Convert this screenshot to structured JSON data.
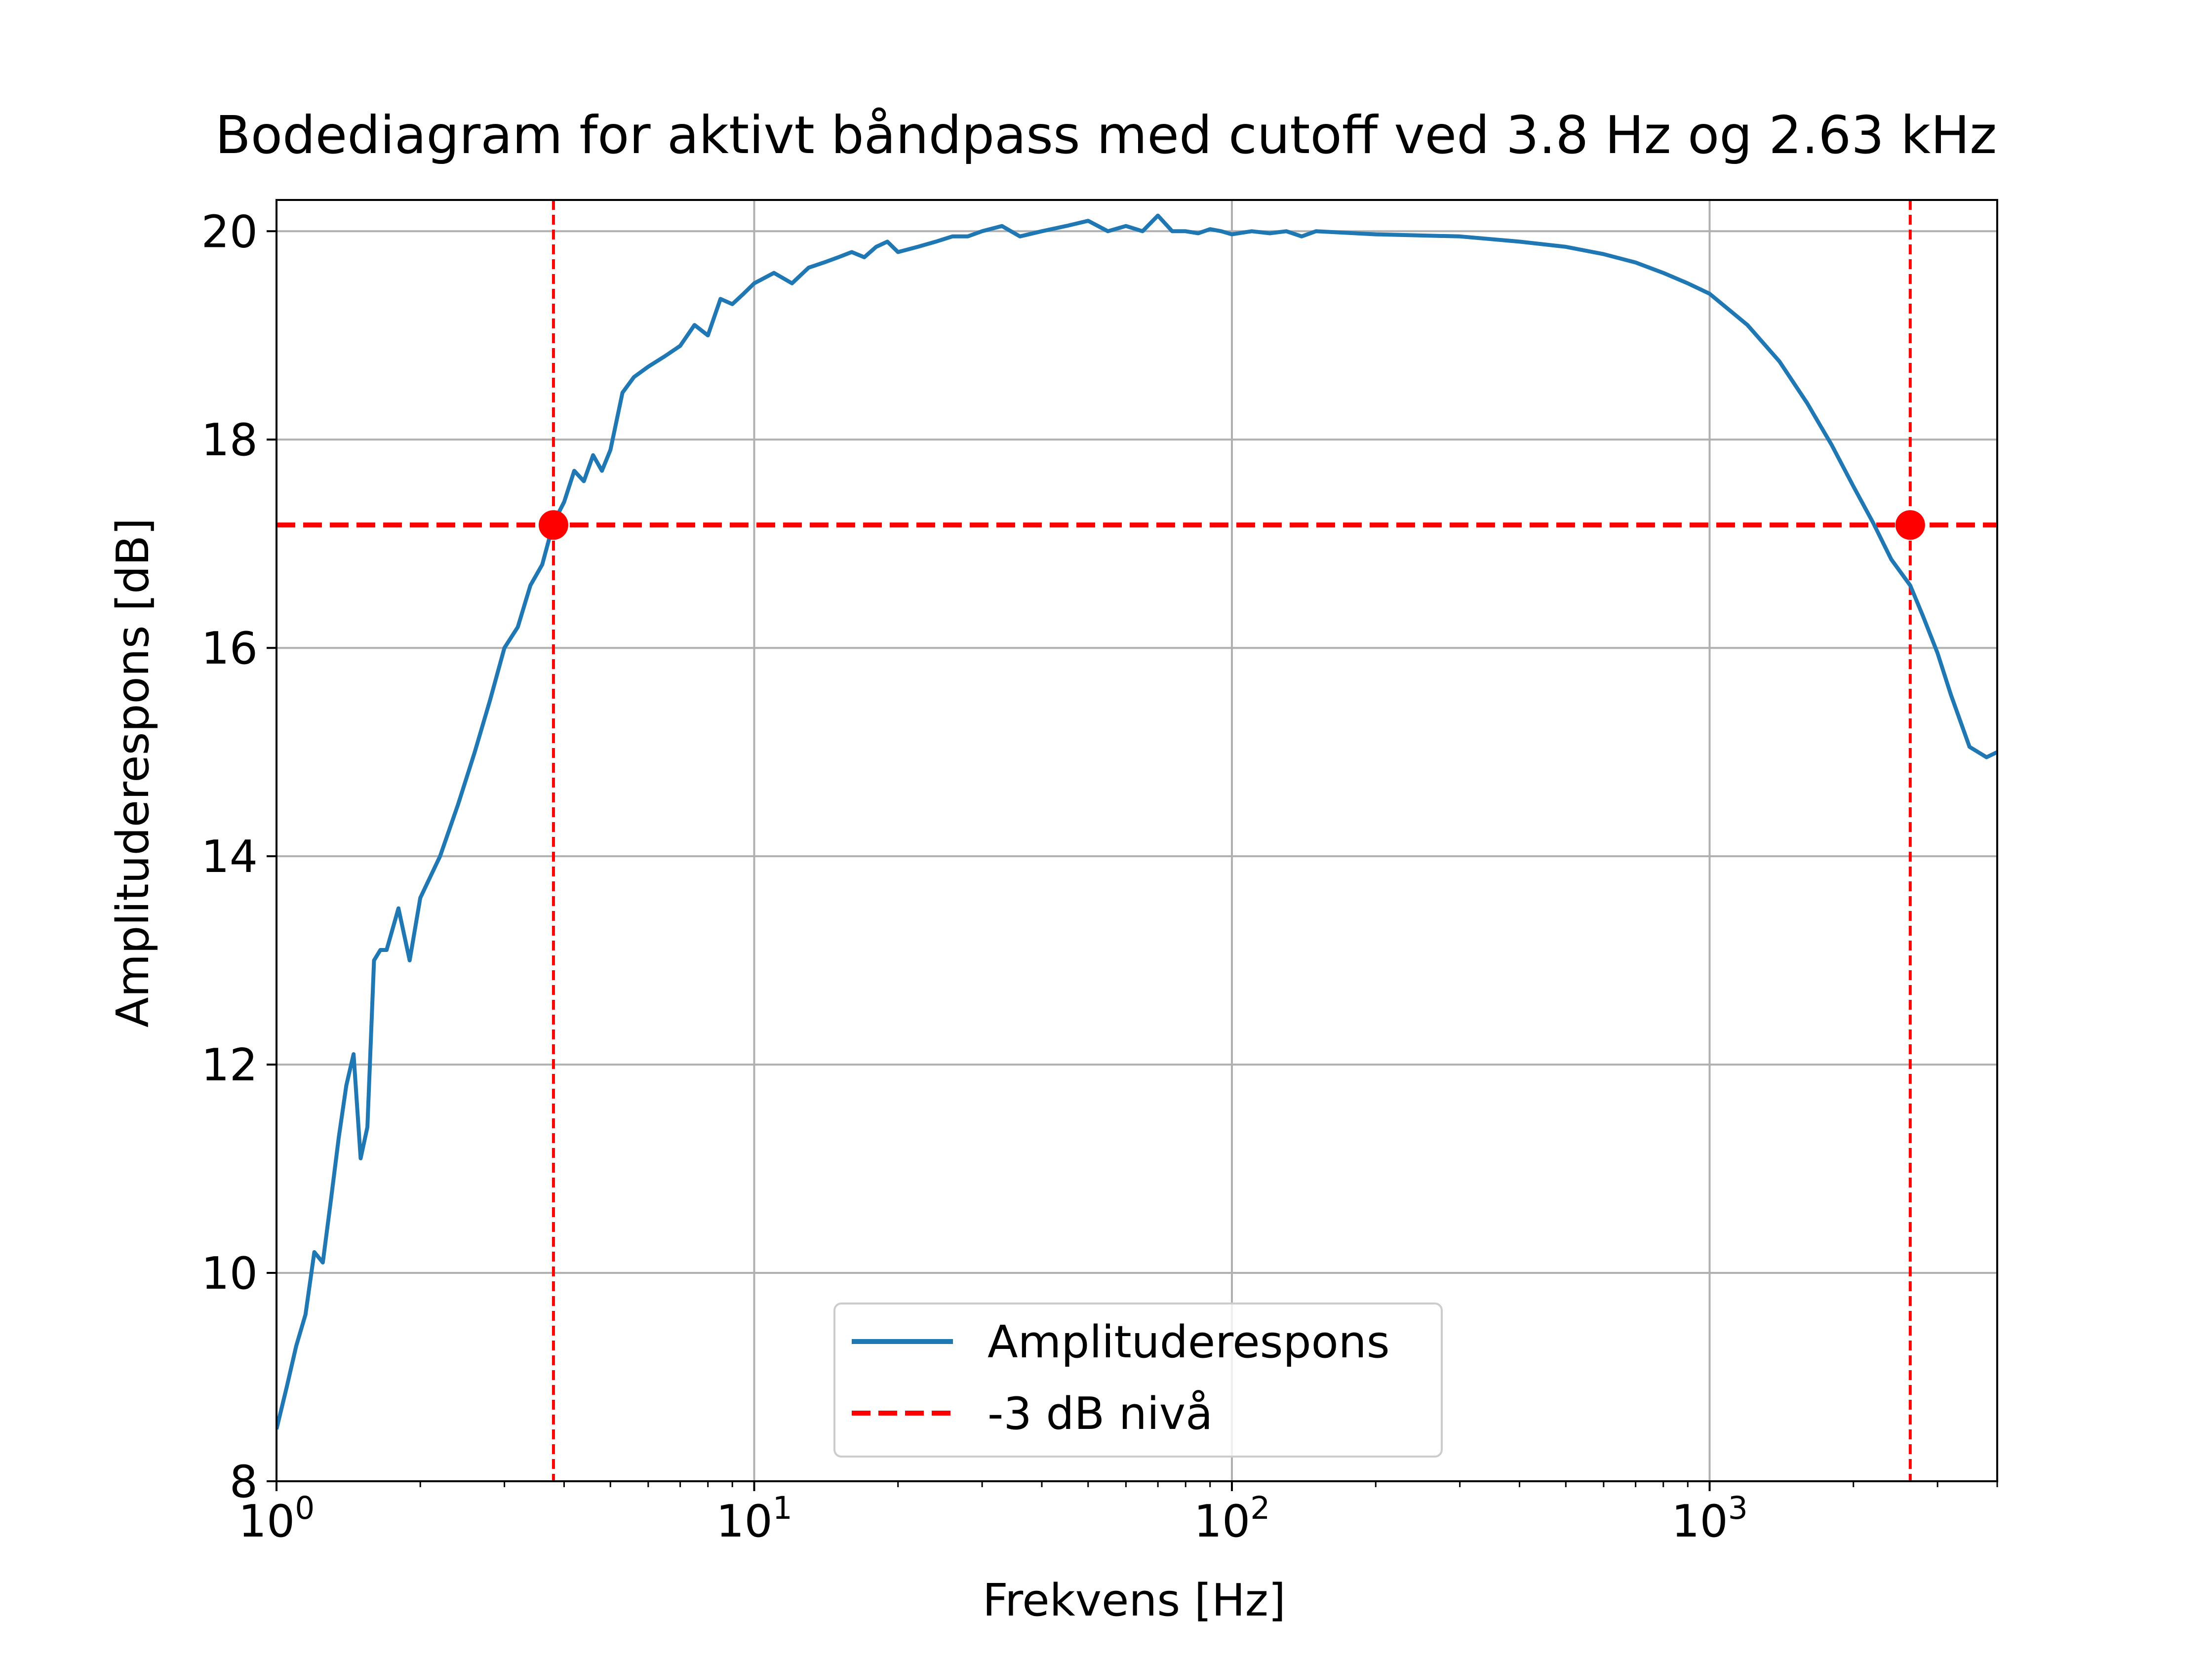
{
  "chart_data": {
    "type": "line",
    "title": "Bodediagram for aktivt båndpass med cutoff ved 3.8 Hz og 2.63 kHz",
    "xlabel": "Frekvens [Hz]",
    "ylabel": "Amplituderespons [dB]",
    "xscale": "log",
    "xlim": [
      1,
      4000
    ],
    "ylim": [
      8,
      20.3
    ],
    "x_ticks": [
      {
        "base": "10",
        "exp": "0",
        "value": 1
      },
      {
        "base": "10",
        "exp": "1",
        "value": 10
      },
      {
        "base": "10",
        "exp": "2",
        "value": 100
      },
      {
        "base": "10",
        "exp": "3",
        "value": 1000
      }
    ],
    "y_ticks": [
      "8",
      "10",
      "12",
      "14",
      "16",
      "18",
      "20"
    ],
    "grid": true,
    "legend_placement": "lower center",
    "series": [
      {
        "name": "Amplituderespons",
        "color": "#1f77b4",
        "x": [
          1.0,
          1.05,
          1.1,
          1.15,
          1.2,
          1.25,
          1.3,
          1.35,
          1.4,
          1.45,
          1.5,
          1.55,
          1.6,
          1.65,
          1.7,
          1.8,
          1.9,
          2.0,
          2.2,
          2.4,
          2.6,
          2.8,
          3.0,
          3.2,
          3.4,
          3.6,
          3.8,
          4.0,
          4.2,
          4.4,
          4.6,
          4.8,
          5.0,
          5.3,
          5.6,
          6.0,
          6.5,
          7.0,
          7.5,
          8.0,
          8.5,
          9.0,
          9.5,
          10.0,
          11.0,
          12.0,
          13.0,
          14.0,
          15.0,
          16.0,
          17.0,
          18.0,
          19.0,
          20.0,
          22.0,
          24.0,
          26.0,
          28.0,
          30.0,
          33.0,
          36.0,
          40.0,
          45.0,
          50.0,
          55.0,
          60.0,
          65.0,
          70.0,
          75.0,
          80.0,
          85.0,
          90.0,
          95.0,
          100.0,
          110.0,
          120.0,
          130.0,
          140.0,
          150.0,
          200.0,
          300.0,
          400.0,
          500.0,
          600.0,
          700.0,
          800.0,
          900.0,
          1000.0,
          1200.0,
          1400.0,
          1600.0,
          1800.0,
          2000.0,
          2200.0,
          2400.0,
          2630.0,
          2800.0,
          3000.0,
          3200.0,
          3500.0,
          3800.0,
          4000.0
        ],
        "y": [
          8.5,
          8.9,
          9.3,
          9.6,
          10.2,
          10.1,
          10.7,
          11.3,
          11.8,
          12.1,
          11.1,
          11.4,
          13.0,
          13.1,
          13.1,
          13.5,
          13.0,
          13.6,
          14.0,
          14.5,
          15.0,
          15.5,
          16.0,
          16.2,
          16.6,
          16.8,
          17.2,
          17.4,
          17.7,
          17.6,
          17.85,
          17.7,
          17.9,
          18.45,
          18.6,
          18.7,
          18.8,
          18.9,
          19.1,
          19.0,
          19.35,
          19.3,
          19.4,
          19.5,
          19.6,
          19.5,
          19.65,
          19.7,
          19.75,
          19.8,
          19.75,
          19.85,
          19.9,
          19.8,
          19.85,
          19.9,
          19.95,
          19.95,
          20.0,
          20.05,
          19.95,
          20.0,
          20.05,
          20.1,
          20.0,
          20.05,
          20.0,
          20.15,
          20.0,
          20.0,
          19.98,
          20.02,
          20.0,
          19.97,
          20.0,
          19.98,
          20.0,
          19.95,
          20.0,
          19.97,
          19.95,
          19.9,
          19.85,
          19.78,
          19.7,
          19.6,
          19.5,
          19.4,
          19.1,
          18.75,
          18.35,
          17.95,
          17.55,
          17.2,
          16.85,
          16.6,
          16.3,
          15.95,
          15.55,
          15.05,
          14.95,
          15.0
        ]
      },
      {
        "name": "-3 dB nivå",
        "color": "#ff0000",
        "style": "dashed"
      }
    ],
    "reference_lines": {
      "horizontal_db": 17.18,
      "vertical_hz": [
        3.8,
        2630
      ]
    },
    "markers": [
      {
        "x": 3.8,
        "y": 17.18
      },
      {
        "x": 2630,
        "y": 17.18
      }
    ],
    "legend": [
      "Amplituderespons",
      "-3 dB nivå"
    ]
  }
}
